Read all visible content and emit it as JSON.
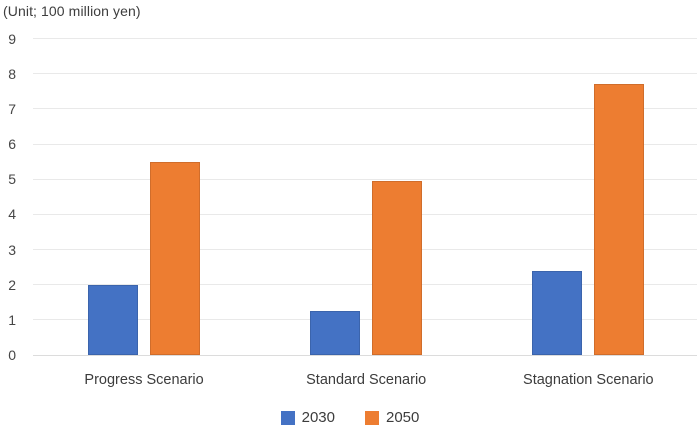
{
  "unit_label": "(Unit; 100 million yen)",
  "colors": {
    "series_2030": "#4472C4",
    "series_2050": "#ED7D31",
    "gridline": "#e9e9e9",
    "axis_text": "#464646"
  },
  "chart_data": {
    "type": "bar",
    "title": "(Unit; 100 million yen)",
    "categories": [
      "Progress Scenario",
      "Standard Scenario",
      "Stagnation Scenario"
    ],
    "series": [
      {
        "name": "2030",
        "color": "#4472C4",
        "values": [
          2.0,
          1.25,
          2.4
        ]
      },
      {
        "name": "2050",
        "color": "#ED7D31",
        "values": [
          5.5,
          4.95,
          7.7
        ]
      }
    ],
    "xlabel": "",
    "ylabel": "",
    "ylim": [
      0,
      9
    ],
    "ytick_step": 1,
    "yticks": [
      0,
      1,
      2,
      3,
      4,
      5,
      6,
      7,
      8,
      9
    ],
    "grid": true,
    "legend_position": "bottom"
  }
}
